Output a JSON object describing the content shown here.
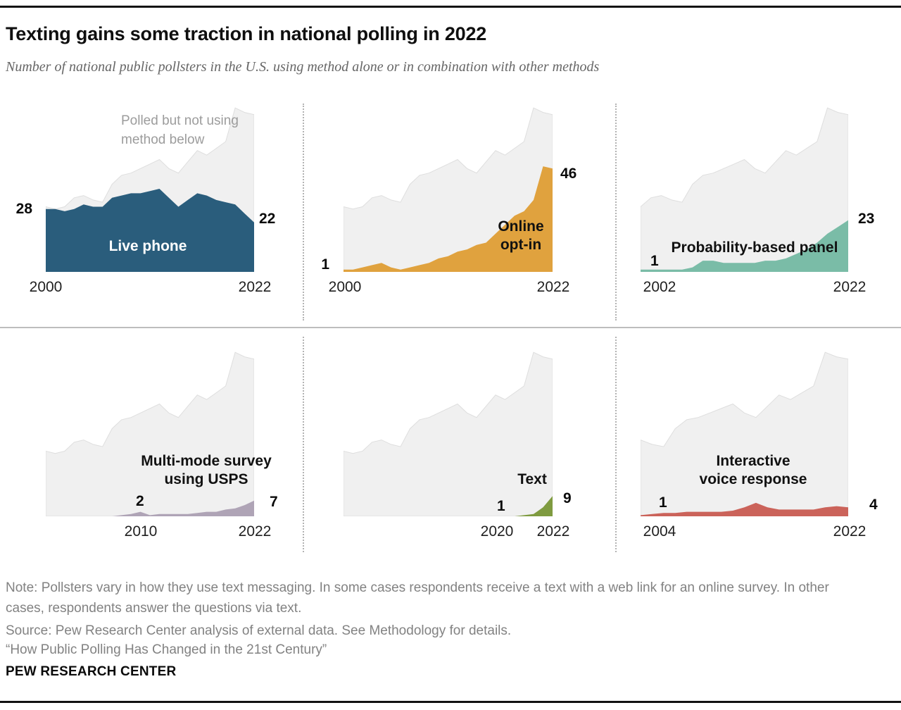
{
  "header": {
    "title": "Texting gains some traction in national polling in 2022",
    "subtitle": "Number of national public pollsters in the U.S. using method alone or in combination with other methods"
  },
  "footer": {
    "note": "Note: Pollsters vary in how they use text messaging. In some cases respondents receive a text with a web link for an online survey. In other cases, respondents answer the questions via text.",
    "source": "Source: Pew Research Center analysis of external data. See Methodology for details.",
    "report_title": "“How Public Polling Has Changed in the 21st Century”",
    "brand": "PEW RESEARCH CENTER"
  },
  "chart_data": {
    "type": "area",
    "ylim": [
      0,
      74
    ],
    "grid": false,
    "x_step_years": 1,
    "background_series": {
      "label_lines": [
        "Polled but not using",
        "method below"
      ],
      "color": "#f0f0f0",
      "x0": 2000,
      "x1": 2022,
      "values": [
        29,
        28,
        29,
        33,
        34,
        32,
        31,
        39,
        43,
        44,
        46,
        48,
        50,
        46,
        44,
        49,
        54,
        52,
        55,
        58,
        73,
        71,
        70
      ]
    },
    "charts": [
      {
        "name": "Live phone",
        "name_lines": [
          "Live phone"
        ],
        "color": "#2a5d7c",
        "x0": 2000,
        "x1": 2022,
        "axis_labels": [
          "2000",
          "2022"
        ],
        "start_label": "28",
        "start_label_year": 2000,
        "end_label": "22",
        "end_label_year": 2022,
        "values": [
          28,
          28,
          27,
          28,
          30,
          29,
          29,
          33,
          34,
          35,
          35,
          36,
          37,
          33,
          29,
          32,
          35,
          34,
          32,
          31,
          30,
          26,
          22
        ]
      },
      {
        "name": "Online opt-in",
        "name_lines": [
          "Online",
          "opt-in"
        ],
        "color": "#e0a23e",
        "x0": 2000,
        "x1": 2022,
        "axis_labels": [
          "2000",
          "2022"
        ],
        "start_label": "1",
        "start_label_year": 2000,
        "end_label": "46",
        "end_label_year": 2022,
        "values": [
          1,
          1,
          2,
          3,
          4,
          2,
          1,
          2,
          3,
          4,
          6,
          7,
          9,
          10,
          12,
          13,
          17,
          21,
          25,
          27,
          32,
          47,
          46
        ]
      },
      {
        "name": "Probability-based panel",
        "name_lines": [
          "Probability-based panel"
        ],
        "color": "#7abca7",
        "x0": 2002,
        "x1": 2022,
        "axis_labels": [
          "2002",
          "2022"
        ],
        "start_label": "1",
        "start_label_year": 2002,
        "end_label": "23",
        "end_label_year": 2022,
        "values": [
          1,
          1,
          1,
          1,
          1,
          2,
          5,
          5,
          4,
          4,
          4,
          4,
          5,
          5,
          6,
          8,
          10,
          13,
          17,
          20,
          23
        ]
      },
      {
        "name": "Multi-mode survey using USPS",
        "name_lines": [
          "Multi-mode survey",
          "using USPS"
        ],
        "color": "#afa4b6",
        "x0": 2000,
        "x1": 2022,
        "axis_labels": [
          "2010",
          "2022"
        ],
        "start_label": "2",
        "start_label_year": 2010,
        "end_label": "7",
        "end_label_year": 2022,
        "values": [
          0,
          0,
          0,
          0,
          0,
          0,
          0,
          0,
          0.5,
          1,
          2,
          0.5,
          1,
          1,
          1,
          1,
          1.5,
          2,
          2,
          3,
          3.5,
          5,
          7
        ]
      },
      {
        "name": "Text",
        "name_lines": [
          "Text"
        ],
        "color": "#7f9b40",
        "x0": 2000,
        "x1": 2022,
        "axis_labels": [
          "2020",
          "2022"
        ],
        "start_label": "1",
        "start_label_year": 2020,
        "end_label": "9",
        "end_label_year": 2022,
        "values": [
          0,
          0,
          0,
          0,
          0,
          0,
          0,
          0,
          0,
          0,
          0,
          0,
          0,
          0,
          0,
          0,
          0,
          0,
          0,
          0.5,
          1,
          4,
          9
        ]
      },
      {
        "name": "Interactive voice response",
        "name_lines": [
          "Interactive",
          "voice response"
        ],
        "color": "#cb635a",
        "x0": 2004,
        "x1": 2022,
        "axis_labels": [
          "2004",
          "2022"
        ],
        "start_label": "1",
        "start_label_year": 2004,
        "end_label": "4",
        "end_label_year": 2022,
        "values": [
          0.5,
          1,
          1.5,
          1.5,
          2,
          2,
          2,
          2,
          2.5,
          4,
          6,
          4,
          3,
          3,
          3,
          3,
          4,
          4.5,
          4
        ]
      }
    ]
  }
}
